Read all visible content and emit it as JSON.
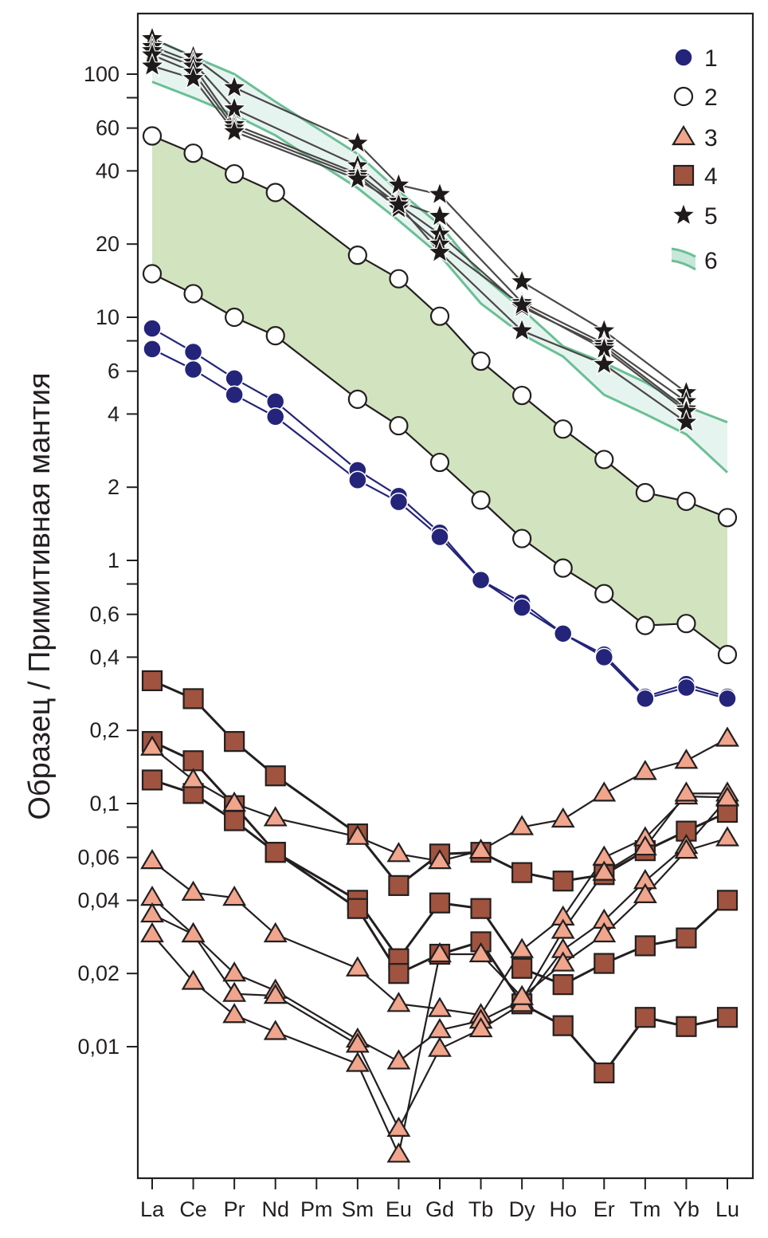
{
  "chart_data": {
    "type": "line",
    "title": "",
    "xlabel": "",
    "ylabel": "Образец / Примитивная мантия",
    "yscale": "log",
    "ylim": [
      0.0035,
      160
    ],
    "grid": false,
    "legend_position": "top-right",
    "categories": [
      "La",
      "Ce",
      "Pr",
      "Nd",
      "Pm",
      "Sm",
      "Eu",
      "Gd",
      "Tb",
      "Dy",
      "Ho",
      "Er",
      "Tm",
      "Yb",
      "Lu"
    ],
    "y_ticks": [
      {
        "value": 100,
        "label": "100"
      },
      {
        "value": 80,
        "label": ""
      },
      {
        "value": 60,
        "label": "60"
      },
      {
        "value": 40,
        "label": "40"
      },
      {
        "value": 20,
        "label": "20"
      },
      {
        "value": 10,
        "label": "10"
      },
      {
        "value": 8,
        "label": ""
      },
      {
        "value": 6,
        "label": "6"
      },
      {
        "value": 4,
        "label": "4"
      },
      {
        "value": 2,
        "label": "2"
      },
      {
        "value": 1,
        "label": "1"
      },
      {
        "value": 0.8,
        "label": ""
      },
      {
        "value": 0.6,
        "label": "0,6"
      },
      {
        "value": 0.4,
        "label": "0,4"
      },
      {
        "value": 0.2,
        "label": "0,2"
      },
      {
        "value": 0.1,
        "label": "0,1"
      },
      {
        "value": 0.08,
        "label": ""
      },
      {
        "value": 0.06,
        "label": "0,06"
      },
      {
        "value": 0.04,
        "label": "0,04"
      },
      {
        "value": 0.02,
        "label": "0,02"
      },
      {
        "value": 0.01,
        "label": "0,01"
      }
    ],
    "legend": [
      {
        "id": "1",
        "label": "1",
        "marker": "circle-filled"
      },
      {
        "id": "2",
        "label": "2",
        "marker": "circle-open"
      },
      {
        "id": "3",
        "label": "3",
        "marker": "triangle"
      },
      {
        "id": "4",
        "label": "4",
        "marker": "square"
      },
      {
        "id": "5",
        "label": "5",
        "marker": "star"
      },
      {
        "id": "6",
        "label": "6",
        "marker": "band"
      }
    ],
    "colors": {
      "group1": "#24247a",
      "group2_fill": "#d2e3bf",
      "group3": "#f0a58c",
      "group4": "#a0533f",
      "group5": "#1e1a1a",
      "group6_line": "#6bbf95",
      "group6_fill": "#e6f4f0",
      "line_dark": "#231f20",
      "star_line": "#4a4747"
    },
    "band6": {
      "name": "6",
      "upper": [
        140,
        118,
        100,
        77,
        null,
        47,
        33,
        24,
        15,
        10.8,
        7.6,
        6.5,
        5.4,
        4.3,
        3.7
      ],
      "lower": [
        93,
        80,
        68,
        56,
        null,
        34,
        25,
        18,
        11.4,
        8.5,
        6.9,
        4.8,
        4.0,
        3.3,
        2.3
      ]
    },
    "band2_fill": {
      "name": "2-range",
      "upper": [
        55.7,
        47.3,
        38.9,
        32.6,
        null,
        18.0,
        14.4,
        10.1,
        6.6,
        4.77,
        3.47,
        2.6,
        1.9,
        1.75,
        1.5
      ],
      "lower": [
        15.1,
        12.5,
        10.0,
        8.4,
        null,
        4.6,
        3.58,
        2.53,
        1.77,
        1.23,
        0.93,
        0.73,
        0.54,
        0.55,
        0.41
      ]
    },
    "series": [
      {
        "name": "5",
        "group": "5",
        "values": [
          140,
          118,
          88,
          null,
          null,
          52,
          35,
          32,
          null,
          14,
          null,
          8.8,
          null,
          4.9,
          null
        ]
      },
      {
        "name": "5",
        "group": "5",
        "values": [
          130,
          112,
          72,
          null,
          null,
          42,
          30,
          26,
          null,
          11.5,
          null,
          7.8,
          null,
          4.5,
          null
        ]
      },
      {
        "name": "5",
        "group": "5",
        "values": [
          125,
          108,
          62,
          null,
          null,
          39,
          29,
          22,
          null,
          11,
          null,
          7.6,
          null,
          4.2,
          null
        ]
      },
      {
        "name": "5",
        "group": "5",
        "values": [
          120,
          102,
          60,
          null,
          null,
          38,
          28,
          20,
          null,
          11.2,
          null,
          7.4,
          null,
          4.1,
          null
        ]
      },
      {
        "name": "5",
        "group": "5",
        "values": [
          108,
          96,
          58,
          null,
          null,
          37,
          29,
          18.5,
          null,
          8.8,
          null,
          6.4,
          null,
          3.7,
          null
        ]
      },
      {
        "name": "2",
        "group": "2",
        "values": [
          55.7,
          47.3,
          38.9,
          32.6,
          null,
          18.0,
          14.4,
          10.1,
          6.6,
          4.77,
          3.47,
          2.6,
          1.9,
          1.75,
          1.5
        ]
      },
      {
        "name": "2",
        "group": "2",
        "values": [
          15.1,
          12.5,
          10.0,
          8.4,
          null,
          4.6,
          3.58,
          2.53,
          1.77,
          1.23,
          0.93,
          0.73,
          0.54,
          0.55,
          0.41
        ]
      },
      {
        "name": "1",
        "group": "1",
        "values": [
          9.0,
          7.2,
          5.6,
          4.5,
          null,
          2.35,
          1.84,
          1.3,
          0.83,
          0.67,
          0.5,
          0.41,
          0.275,
          0.31,
          0.275
        ]
      },
      {
        "name": "1",
        "group": "1",
        "values": [
          7.4,
          6.1,
          4.8,
          3.9,
          null,
          2.14,
          1.74,
          1.25,
          0.83,
          0.64,
          0.5,
          0.4,
          0.27,
          0.3,
          0.27
        ]
      },
      {
        "name": "4",
        "group": "4",
        "values": [
          0.32,
          0.27,
          0.18,
          0.13,
          null,
          0.075,
          0.046,
          0.062,
          0.063,
          0.052,
          0.048,
          0.051,
          0.064,
          0.077,
          0.092
        ]
      },
      {
        "name": "4",
        "group": "4",
        "values": [
          0.18,
          0.15,
          0.098,
          0.063,
          null,
          0.04,
          0.023,
          0.039,
          0.037,
          0.021,
          0.018,
          0.022,
          0.026,
          0.028,
          0.04
        ]
      },
      {
        "name": "4",
        "group": "4",
        "values": [
          0.125,
          0.11,
          0.085,
          0.063,
          null,
          0.037,
          0.02,
          0.024,
          0.027,
          0.015,
          0.0122,
          0.0078,
          0.0132,
          0.0121,
          0.0132
        ]
      },
      {
        "name": "3",
        "group": "3",
        "values": [
          0.17,
          0.125,
          0.1,
          0.087,
          null,
          0.073,
          0.062,
          0.058,
          0.064,
          0.08,
          0.086,
          0.11,
          0.135,
          0.15,
          0.185
        ]
      },
      {
        "name": "3",
        "group": "3",
        "values": [
          0.058,
          0.043,
          0.041,
          0.029,
          null,
          0.021,
          0.015,
          0.0143,
          0.0135,
          0.025,
          0.034,
          0.06,
          0.072,
          0.107,
          0.106
        ]
      },
      {
        "name": "3",
        "group": "3",
        "values": [
          0.041,
          0.029,
          0.02,
          0.017,
          null,
          0.0107,
          0.0087,
          0.0117,
          0.0128,
          0.0155,
          0.03,
          0.052,
          0.066,
          0.11,
          0.11
        ]
      },
      {
        "name": "3",
        "group": "3",
        "values": [
          0.035,
          0.029,
          0.0165,
          0.0162,
          null,
          0.0102,
          0.0046,
          0.0098,
          0.0118,
          0.015,
          0.025,
          0.033,
          0.048,
          0.067,
          0.105
        ]
      },
      {
        "name": "3",
        "group": "3",
        "values": [
          0.029,
          0.0185,
          0.0135,
          0.0115,
          null,
          0.0085,
          0.0036,
          0.024,
          0.024,
          0.016,
          0.022,
          0.029,
          0.042,
          0.064,
          0.072
        ]
      }
    ]
  }
}
